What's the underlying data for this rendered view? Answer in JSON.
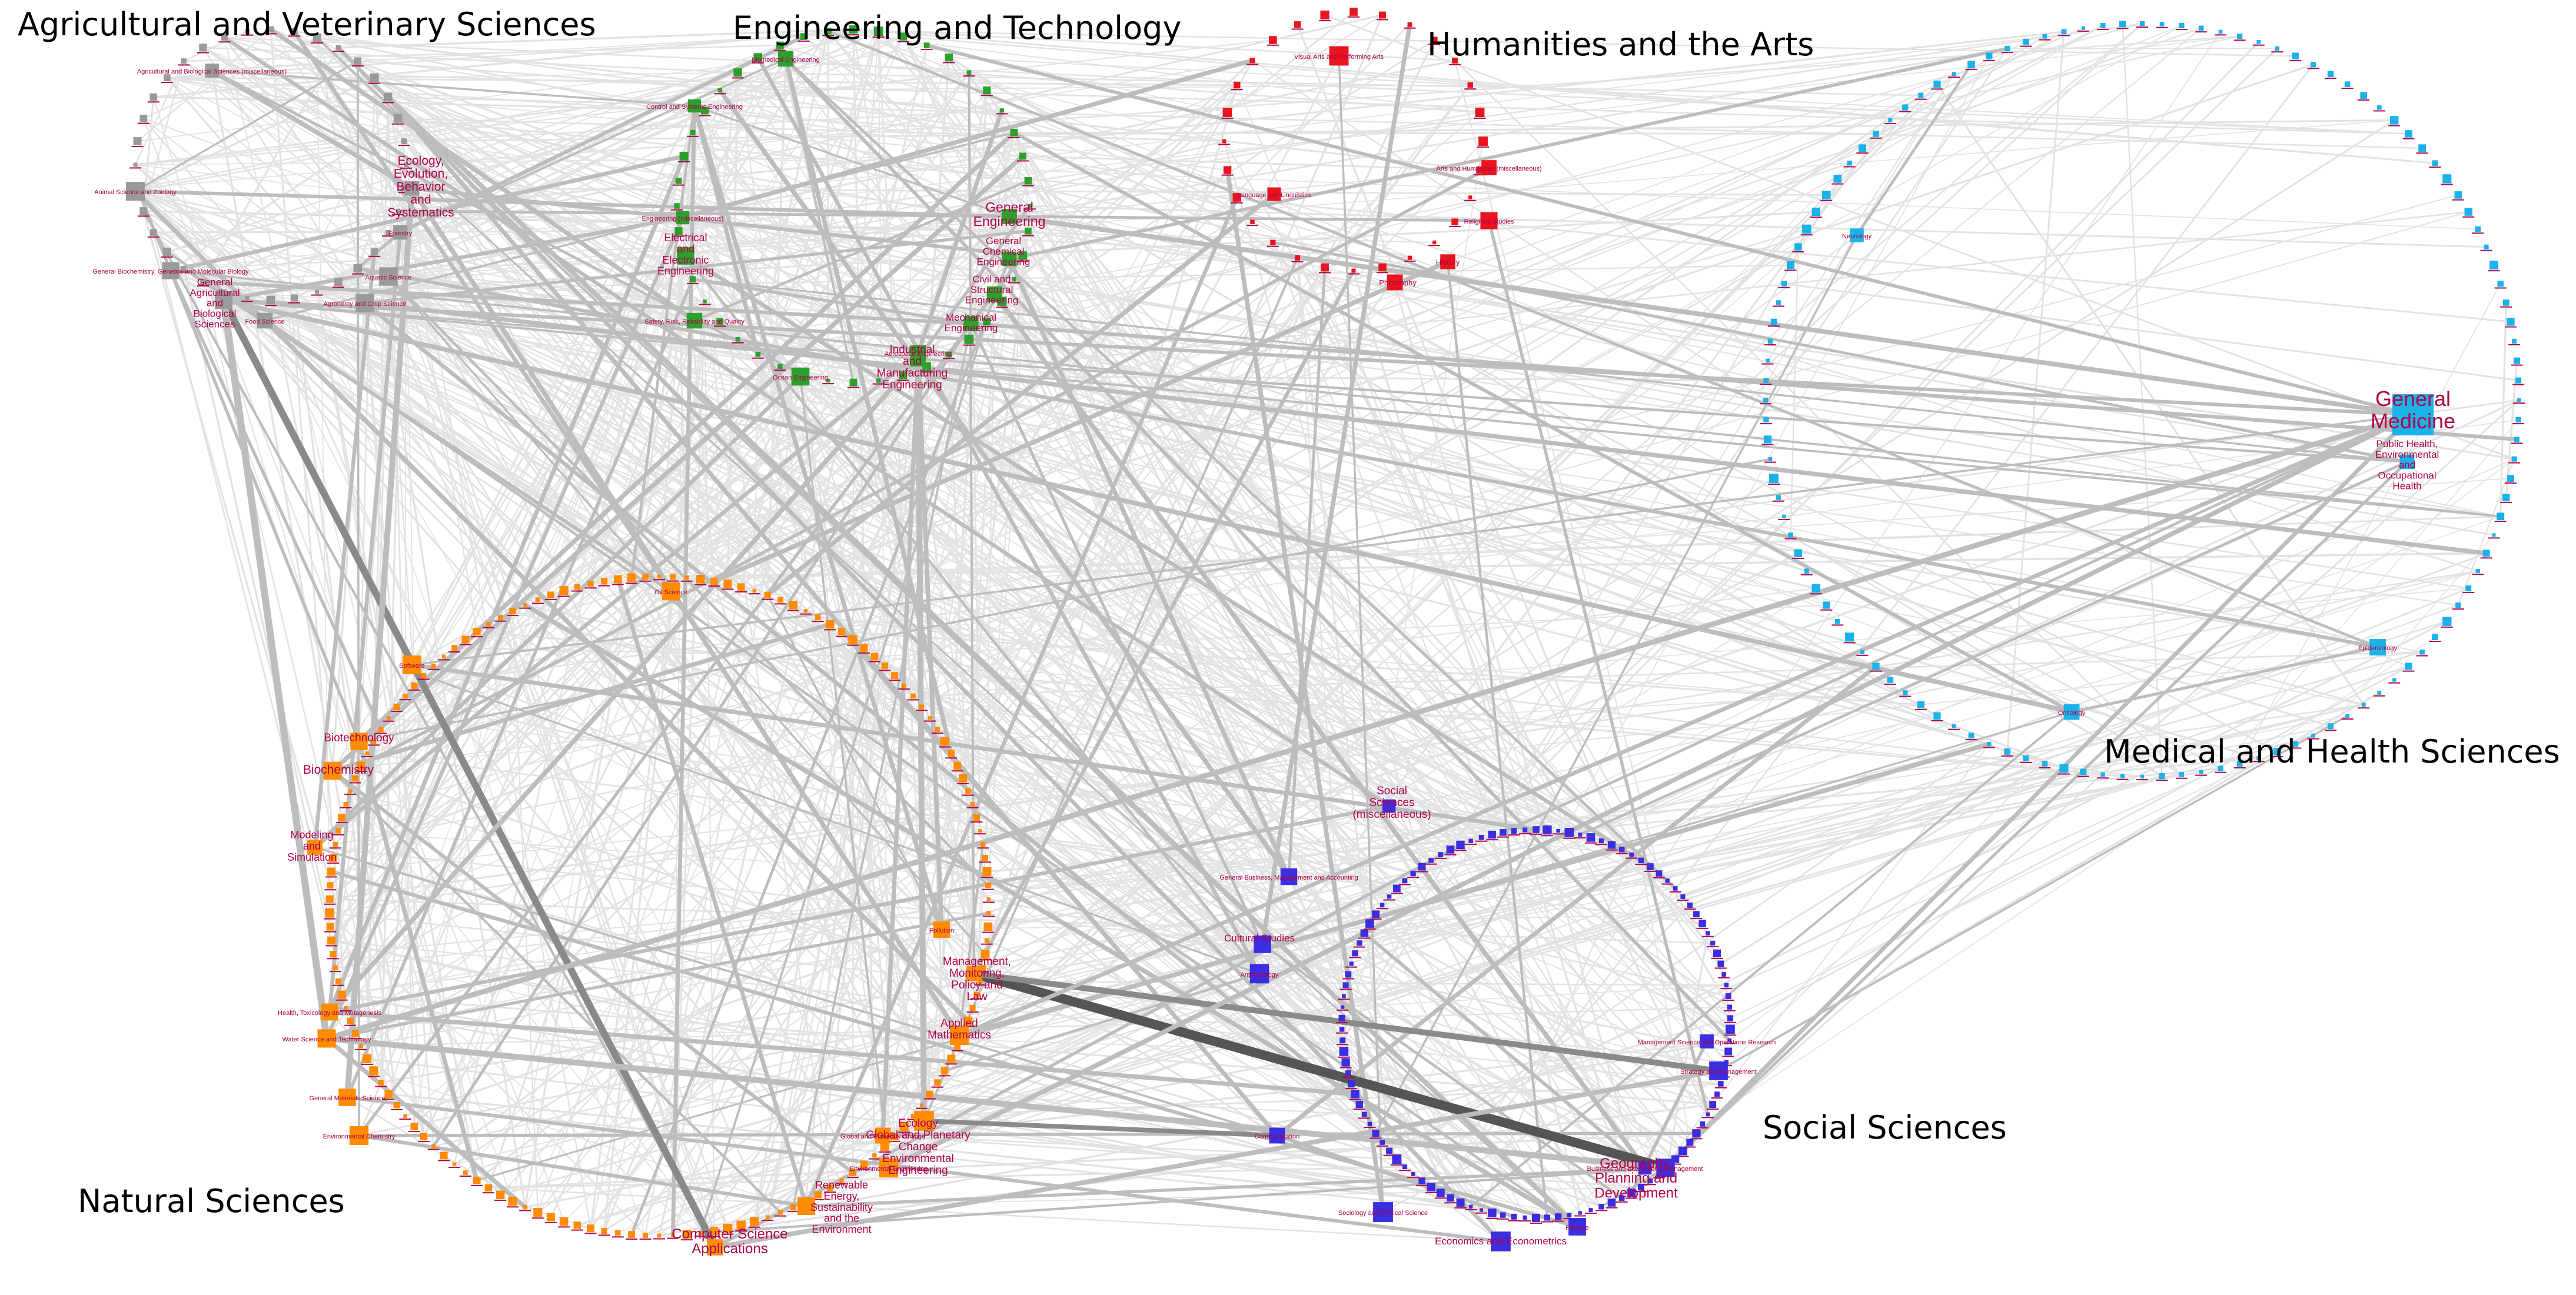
{
  "title": "",
  "colors": {
    "edge_light": "#e2e2e2",
    "edge_mid": "#bdbdbd",
    "edge_dark": "#8a8a8a",
    "edge_darkest": "#555555",
    "label": "#b0004a"
  },
  "groups": [
    {
      "id": "agri",
      "name": "Agricultural and Veterinary Sciences",
      "color": "#9a9a9a",
      "nodes": [
        "Agricultural and Biological Sciences (miscellaneous)",
        "Food Science",
        "Animal Science and Zoology",
        "Ecology, Evolution, Behavior and Systematics",
        "Forestry",
        "General Biochemistry, Genetics and Molecular Biology",
        "General Agricultural and Biological Sciences",
        "Agronomy and Crop Science",
        "Aquatic Science"
      ]
    },
    {
      "id": "eng",
      "name": "Engineering and Technology",
      "color": "#2ca02c",
      "nodes": [
        "Biomedical Engineering",
        "Control and Systems Engineering",
        "Engineering (miscellaneous)",
        "Electrical and Electronic Engineering",
        "Safety, Risk, Reliability and Quality",
        "General Engineering",
        "General Chemical Engineering",
        "Civil and Structural Engineering",
        "Mechanical Engineering",
        "Industrial and Manufacturing Engineering",
        "Ocean Engineering",
        "Aerospace Engineering"
      ]
    },
    {
      "id": "hum",
      "name": "Humanities and the Arts",
      "color": "#e8141e",
      "nodes": [
        "Visual Arts and Performing Arts",
        "Language and Linguistics",
        "Arts and Humanities (miscellaneous)",
        "History",
        "Philosophy",
        "Religious Studies"
      ]
    },
    {
      "id": "med",
      "name": "Medical and Health Sciences",
      "color": "#1ab2e8",
      "nodes": [
        "General Medicine",
        "Public Health, Environmental and Occupational Health",
        "Epidemiology",
        "Oncology",
        "Neurology"
      ]
    },
    {
      "id": "nat",
      "name": "Natural Sciences",
      "color": "#ff8c00",
      "nodes": [
        "Computer Science Applications",
        "Management, Monitoring, Policy and Law",
        "Applied Mathematics",
        "Ecology",
        "Global and Planetary Change",
        "Renewable Energy, Sustainability and the Environment",
        "Environmental Engineering",
        "Biotechnology",
        "Biochemistry",
        "Modeling and Simulation",
        "Software",
        "Health, Toxicology and Mutagenesis",
        "Water Science and Technology",
        "General Materials Science",
        "Environmental Chemistry",
        "Oil Science",
        "Pollution"
      ]
    },
    {
      "id": "soc",
      "name": "Social Sciences",
      "color": "#3a2ee0",
      "nodes": [
        "Social Sciences (miscellaneous)",
        "General Business, Management and Accounting",
        "Cultural Studies",
        "Anthropology",
        "Communication",
        "Geography, Planning and Development",
        "Business and International Management",
        "Strategy and Management",
        "Economics and Econometrics",
        "Sociology and Political Science",
        "Management Science and Operations Research",
        "Finance"
      ]
    }
  ]
}
